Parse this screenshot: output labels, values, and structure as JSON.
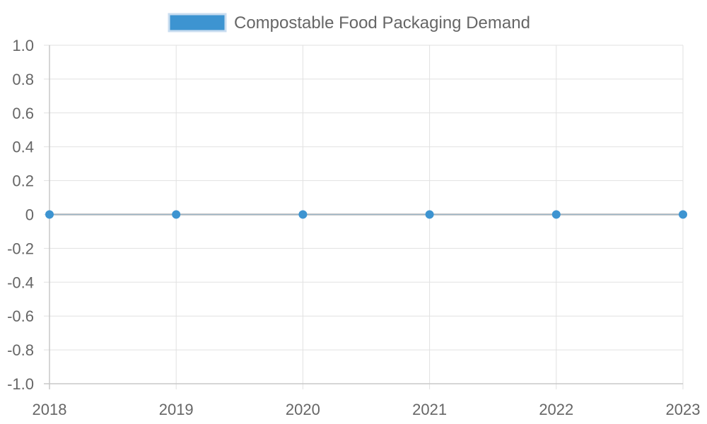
{
  "chart_data": {
    "type": "line",
    "categories": [
      "2018",
      "2019",
      "2020",
      "2021",
      "2022",
      "2023"
    ],
    "series": [
      {
        "name": "Compostable Food Packaging Demand",
        "values": [
          0,
          0,
          0,
          0,
          0,
          0
        ],
        "color": "#3d94d1"
      }
    ],
    "ylim": [
      -1.0,
      1.0
    ],
    "yticks": [
      "1.0",
      "0.8",
      "0.6",
      "0.4",
      "0.2",
      "0",
      "-0.2",
      "-0.4",
      "-0.6",
      "-0.8",
      "-1.0"
    ],
    "grid": true,
    "legend_position": "top"
  }
}
